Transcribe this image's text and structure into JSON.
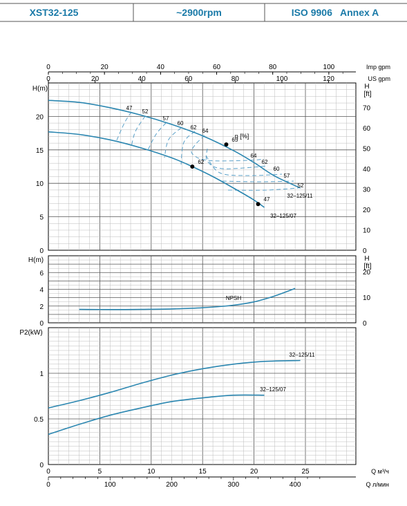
{
  "header": {
    "model": "XST32-125",
    "speed": "~2900rpm",
    "standard": "ISO 9906   Annex A"
  },
  "colors": {
    "header_text": "#1a7aa8",
    "curve": "#2a86b0",
    "dashed": "#5aa0c8",
    "grid": "#888888",
    "axis": "#000000"
  },
  "chart_data": [
    {
      "type": "line",
      "name": "head",
      "ylabel": "H(m)",
      "ylabel_right_top": "H",
      "ylabel_right_unit": "[ft]",
      "ylim": [
        0,
        25
      ],
      "yticks": [
        0,
        5,
        10,
        15,
        20
      ],
      "yticks_right": [
        0,
        10,
        20,
        30,
        40,
        50,
        60,
        70
      ],
      "x_top_imp": {
        "label": "Imp gpm",
        "ticks": [
          0,
          20,
          40,
          60,
          80,
          100
        ]
      },
      "x_top_us": {
        "label": "US gpm",
        "ticks": [
          0,
          20,
          40,
          60,
          80,
          100,
          120
        ]
      },
      "eta_label": "η [%]",
      "series": [
        {
          "name": "32–125/11",
          "x": [
            0,
            3,
            6,
            9,
            12,
            15,
            18,
            20,
            22,
            24.5
          ],
          "y": [
            22.4,
            22.1,
            21.3,
            20.2,
            18.8,
            17.1,
            14.9,
            13.1,
            11.1,
            9.3
          ]
        },
        {
          "name": "32–125/07",
          "x": [
            0,
            3,
            6,
            9,
            12,
            14,
            16,
            18,
            20,
            21
          ],
          "y": [
            17.7,
            17.3,
            16.5,
            15.3,
            13.8,
            12.5,
            11.0,
            9.3,
            7.5,
            6.4
          ]
        }
      ],
      "markers": [
        {
          "x": 17.3,
          "y": 15.8,
          "label": "65"
        },
        {
          "x": 14.0,
          "y": 12.5,
          "label": "62"
        },
        {
          "x": 20.4,
          "y": 6.9,
          "label": "47"
        }
      ],
      "efficiency_labels": [
        "47",
        "52",
        "57",
        "60",
        "62",
        "64",
        "64",
        "62",
        "60",
        "57",
        "52"
      ]
    },
    {
      "type": "line",
      "name": "npsh",
      "ylabel": "H(m)",
      "ylabel_right_top": "H",
      "ylabel_right_unit": "[ft]",
      "ylim": [
        0,
        8
      ],
      "yticks": [
        0,
        2,
        4,
        6
      ],
      "yticks_right": [
        0,
        10,
        20
      ],
      "series": [
        {
          "name": "NPSH",
          "x": [
            3,
            6,
            9,
            12,
            15,
            18,
            20,
            22,
            24
          ],
          "y": [
            1.6,
            1.58,
            1.6,
            1.66,
            1.8,
            2.1,
            2.5,
            3.2,
            4.1
          ]
        }
      ]
    },
    {
      "type": "line",
      "name": "power",
      "ylabel": "P2(kW)",
      "ylim": [
        0,
        1.5
      ],
      "yticks": [
        0,
        0.5,
        1
      ],
      "ytick_labels": [
        "0",
        "0.5",
        "1"
      ],
      "series": [
        {
          "name": "32–125/11",
          "x": [
            0,
            3,
            6,
            9,
            12,
            15,
            18,
            21,
            24.5
          ],
          "y": [
            0.62,
            0.7,
            0.79,
            0.89,
            0.98,
            1.05,
            1.1,
            1.13,
            1.14
          ]
        },
        {
          "name": "32–125/07",
          "x": [
            0,
            3,
            6,
            9,
            12,
            15,
            18,
            21
          ],
          "y": [
            0.33,
            0.44,
            0.54,
            0.62,
            0.69,
            0.73,
            0.76,
            0.76
          ]
        }
      ],
      "x_bottom_m3h": {
        "label": "Q  м³/ч",
        "ticks": [
          0,
          5,
          10,
          15,
          20,
          25
        ]
      },
      "x_bottom_lmin": {
        "label": "Q  л/мин",
        "ticks": [
          0,
          100,
          200,
          300,
          400
        ]
      }
    }
  ]
}
